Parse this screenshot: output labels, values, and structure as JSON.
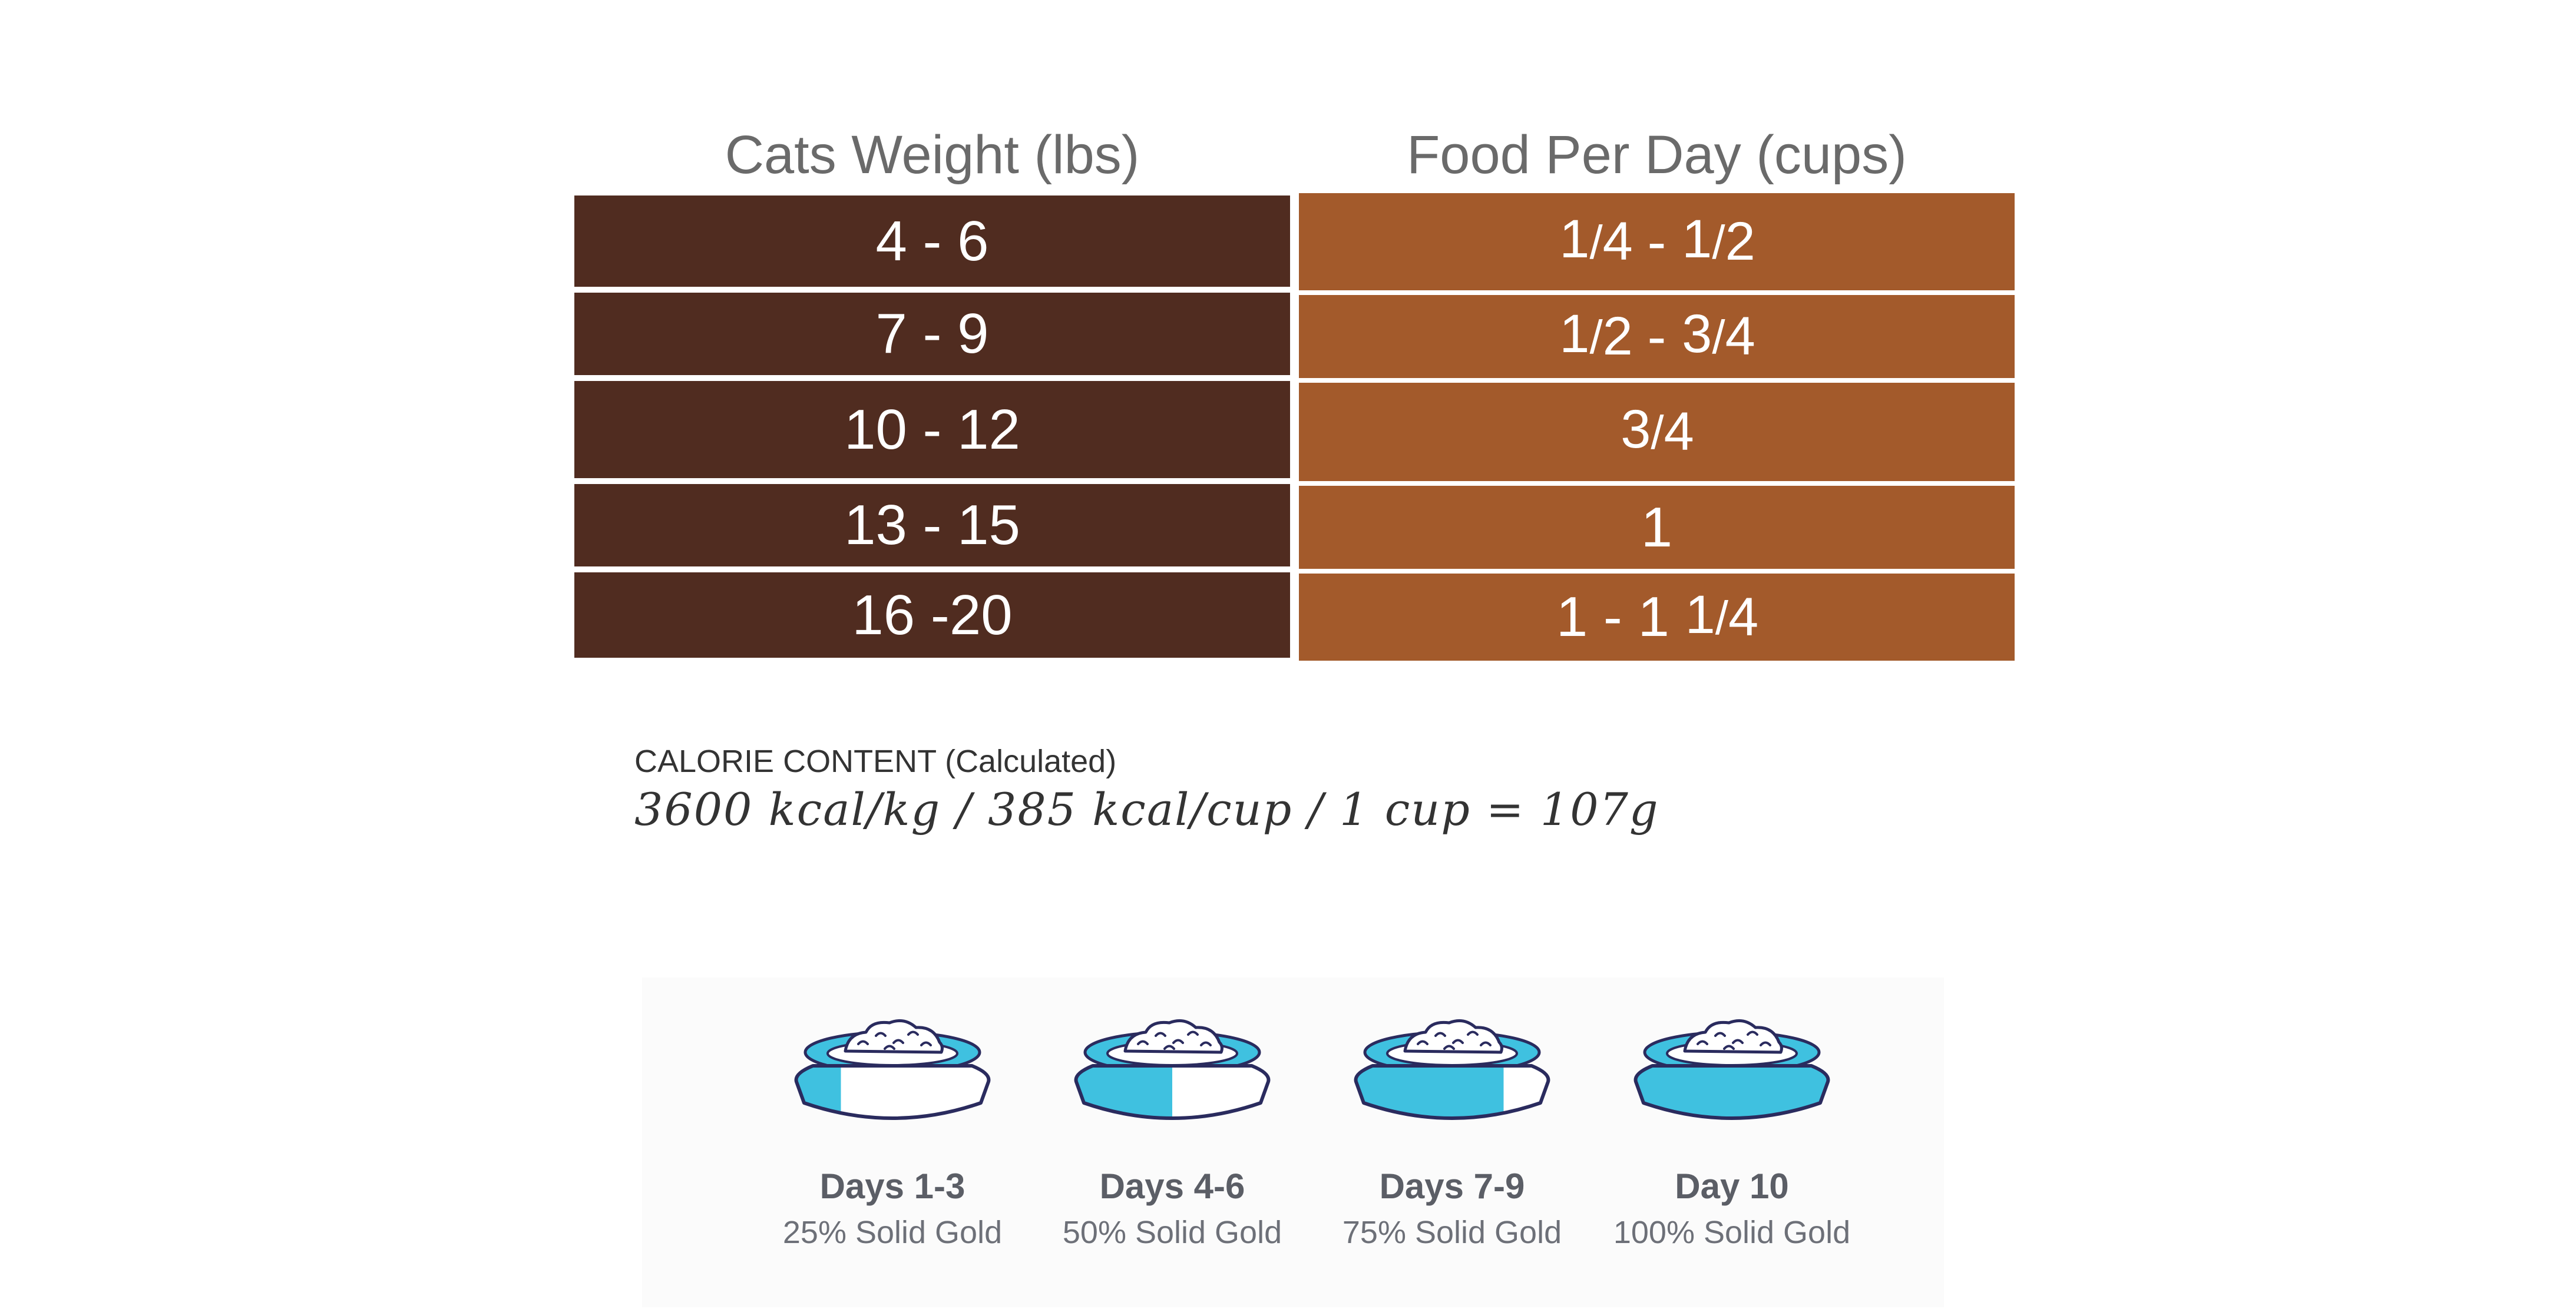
{
  "table": {
    "headers": [
      "Cats Weight (lbs)",
      "Food Per Day (cups)"
    ],
    "rows": [
      {
        "weight": "4 - 6",
        "food": "1/4 - 1/2"
      },
      {
        "weight": "7 - 9",
        "food": "1/2 - 3/4"
      },
      {
        "weight": "10 - 12",
        "food": "3/4"
      },
      {
        "weight": "13 - 15",
        "food": "1"
      },
      {
        "weight": "16 -20",
        "food": "1 - 1 1/4"
      }
    ],
    "colors": {
      "weight_bg": "#502c20",
      "food_bg": "#a35a2b",
      "header_text": "#6a6a6a"
    }
  },
  "calorie": {
    "label": "CALORIE CONTENT (Calculated)",
    "values": "3600 kcal/kg / 385 kcal/cup / 1 cup = 107g"
  },
  "transition": {
    "steps": [
      {
        "title": "Days 1-3",
        "subtitle": "25% Solid Gold",
        "new_food_fraction": 0.25
      },
      {
        "title": "Days 4-6",
        "subtitle": "50% Solid Gold",
        "new_food_fraction": 0.5
      },
      {
        "title": "Days 7-9",
        "subtitle": "75% Solid Gold",
        "new_food_fraction": 0.75
      },
      {
        "title": "Day 10",
        "subtitle": "100% Solid Gold",
        "new_food_fraction": 1.0
      }
    ],
    "colors": {
      "bowl_fill": "#3fc1e0",
      "bowl_outline": "#2a2b5e",
      "title_text": "#5b5e66"
    },
    "icon": "food-bowl-icon"
  }
}
